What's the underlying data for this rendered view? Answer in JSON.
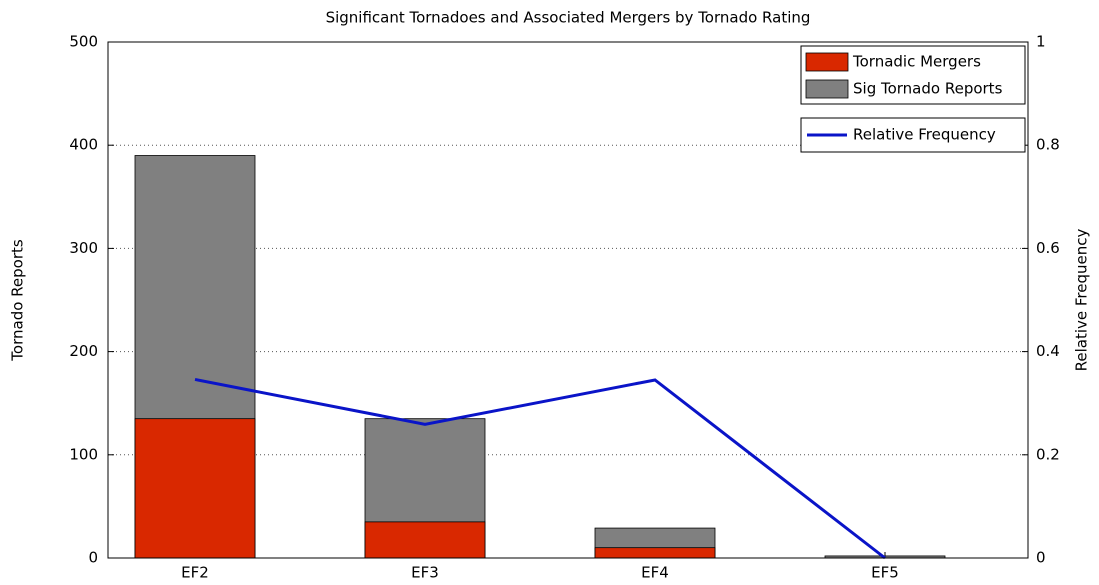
{
  "chart_data": {
    "type": "bar",
    "title": "Significant Tornadoes and Associated Mergers by Tornado Rating",
    "ylabel": "Tornado Reports",
    "y2label": "Relative Frequency",
    "categories": [
      "EF2",
      "EF3",
      "EF4",
      "EF5"
    ],
    "series": [
      {
        "name": "Sig Tornado Reports",
        "color": "#808080",
        "values": [
          390,
          135,
          29,
          2
        ]
      },
      {
        "name": "Tornadic Mergers",
        "color": "#d92800",
        "values": [
          135,
          35,
          10,
          0
        ]
      },
      {
        "name": "Relative Frequency",
        "color": "#0a14c8",
        "type": "line",
        "axis": "y2",
        "values": [
          0.346,
          0.259,
          0.345,
          0
        ]
      }
    ],
    "legend_order": [
      1,
      0
    ],
    "ylim": [
      0,
      500
    ],
    "yticks": [
      0,
      100,
      200,
      300,
      400,
      500
    ],
    "y2lim": [
      0,
      1
    ],
    "y2ticks": [
      0,
      0.2,
      0.4,
      0.6,
      0.8,
      1
    ],
    "grid": true,
    "legend": "upper right"
  }
}
